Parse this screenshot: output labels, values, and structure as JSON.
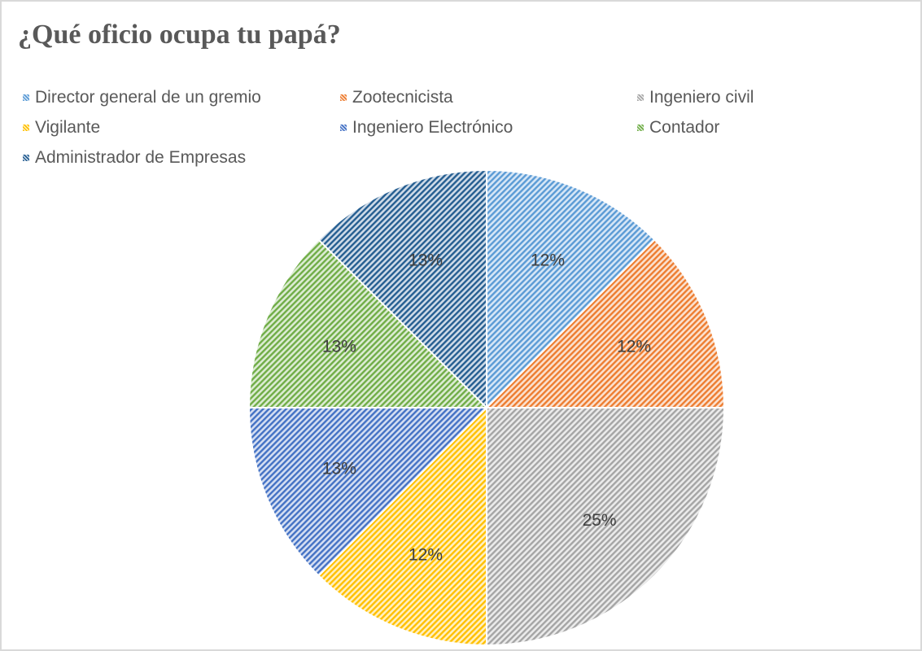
{
  "chart_data": {
    "type": "pie",
    "title": "¿Qué oficio ocupa tu papá?",
    "legend_position": "top",
    "slices": [
      {
        "name": "Director general de un gremio",
        "value": 12.5,
        "label": "12%",
        "color": "#5b9bd5",
        "pale": "#d6e6f6"
      },
      {
        "name": "Zootecnicista",
        "value": 12.5,
        "label": "12%",
        "color": "#ed7d31",
        "pale": "#fbe1cf"
      },
      {
        "name": "Ingeniero civil",
        "value": 25,
        "label": "25%",
        "color": "#a5a5a5",
        "pale": "#ebebeb"
      },
      {
        "name": "Vigilante",
        "value": 12.5,
        "label": "12%",
        "color": "#ffc000",
        "pale": "#fff0c2"
      },
      {
        "name": "Ingeniero Electrónico",
        "value": 12.5,
        "label": "13%",
        "color": "#4472c4",
        "pale": "#d4def2"
      },
      {
        "name": "Contador",
        "value": 12.5,
        "label": "13%",
        "color": "#70ad47",
        "pale": "#dcecd3"
      },
      {
        "name": "Administrador de Empresas",
        "value": 12.5,
        "label": "13%",
        "color": "#255e91",
        "pale": "#cfdbe8"
      }
    ]
  }
}
